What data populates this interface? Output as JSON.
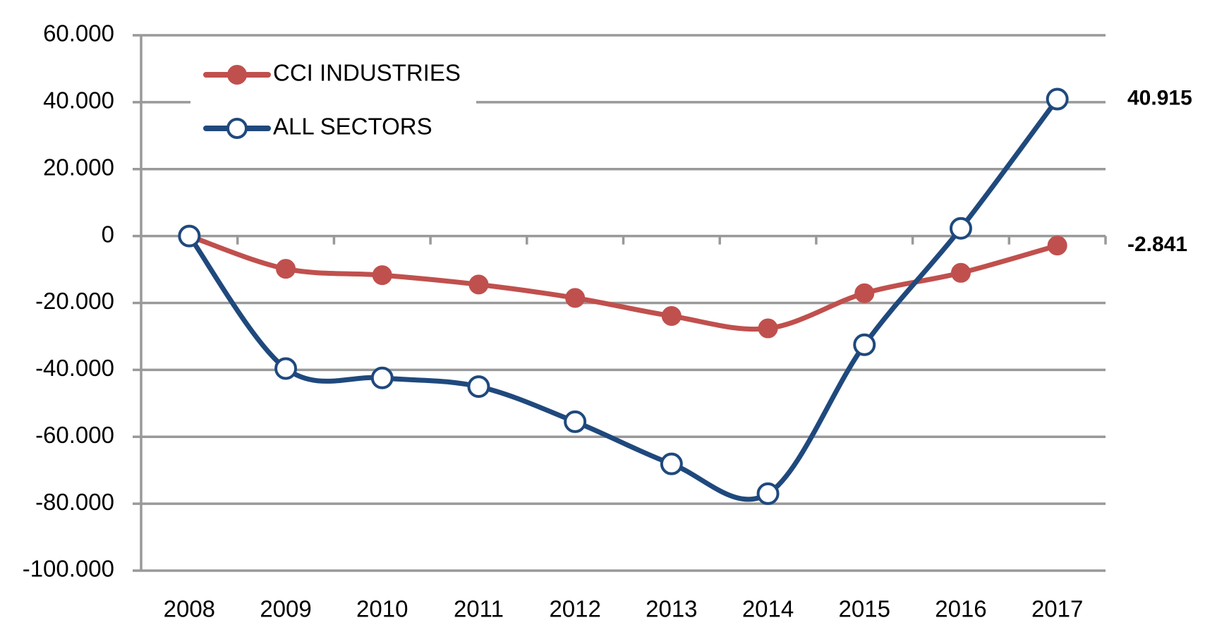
{
  "chart_data": {
    "type": "line",
    "categories": [
      "2008",
      "2009",
      "2010",
      "2011",
      "2012",
      "2013",
      "2014",
      "2015",
      "2016",
      "2017"
    ],
    "series": [
      {
        "name": "CCI INDUSTRIES",
        "color": "#c0504d",
        "values": [
          0,
          -9800,
          -11700,
          -14500,
          -18500,
          -23900,
          -27600,
          -17100,
          -11000,
          -2841
        ],
        "value_labels": [
          null,
          null,
          null,
          null,
          null,
          null,
          null,
          null,
          null,
          "-2.841"
        ]
      },
      {
        "name": "ALL SECTORS",
        "color": "#1f497d",
        "values": [
          0,
          -39600,
          -42400,
          -45000,
          -55500,
          -68100,
          -77000,
          -32500,
          2300,
          40915
        ],
        "value_labels": [
          null,
          null,
          null,
          null,
          null,
          null,
          null,
          null,
          null,
          "40.915"
        ]
      }
    ],
    "ylim": [
      -100000,
      60000
    ],
    "yticks": [
      {
        "value": -100000,
        "label": "-100.000"
      },
      {
        "value": -80000,
        "label": "-80.000"
      },
      {
        "value": -60000,
        "label": "-60.000"
      },
      {
        "value": -40000,
        "label": "-40.000"
      },
      {
        "value": -20000,
        "label": "-20.000"
      },
      0,
      {
        "value": 20000,
        "label": "20.000"
      },
      {
        "value": 40000,
        "label": "40.000"
      },
      {
        "value": 60000,
        "label": "60.000"
      }
    ],
    "grid": true,
    "legend": "upper left"
  }
}
